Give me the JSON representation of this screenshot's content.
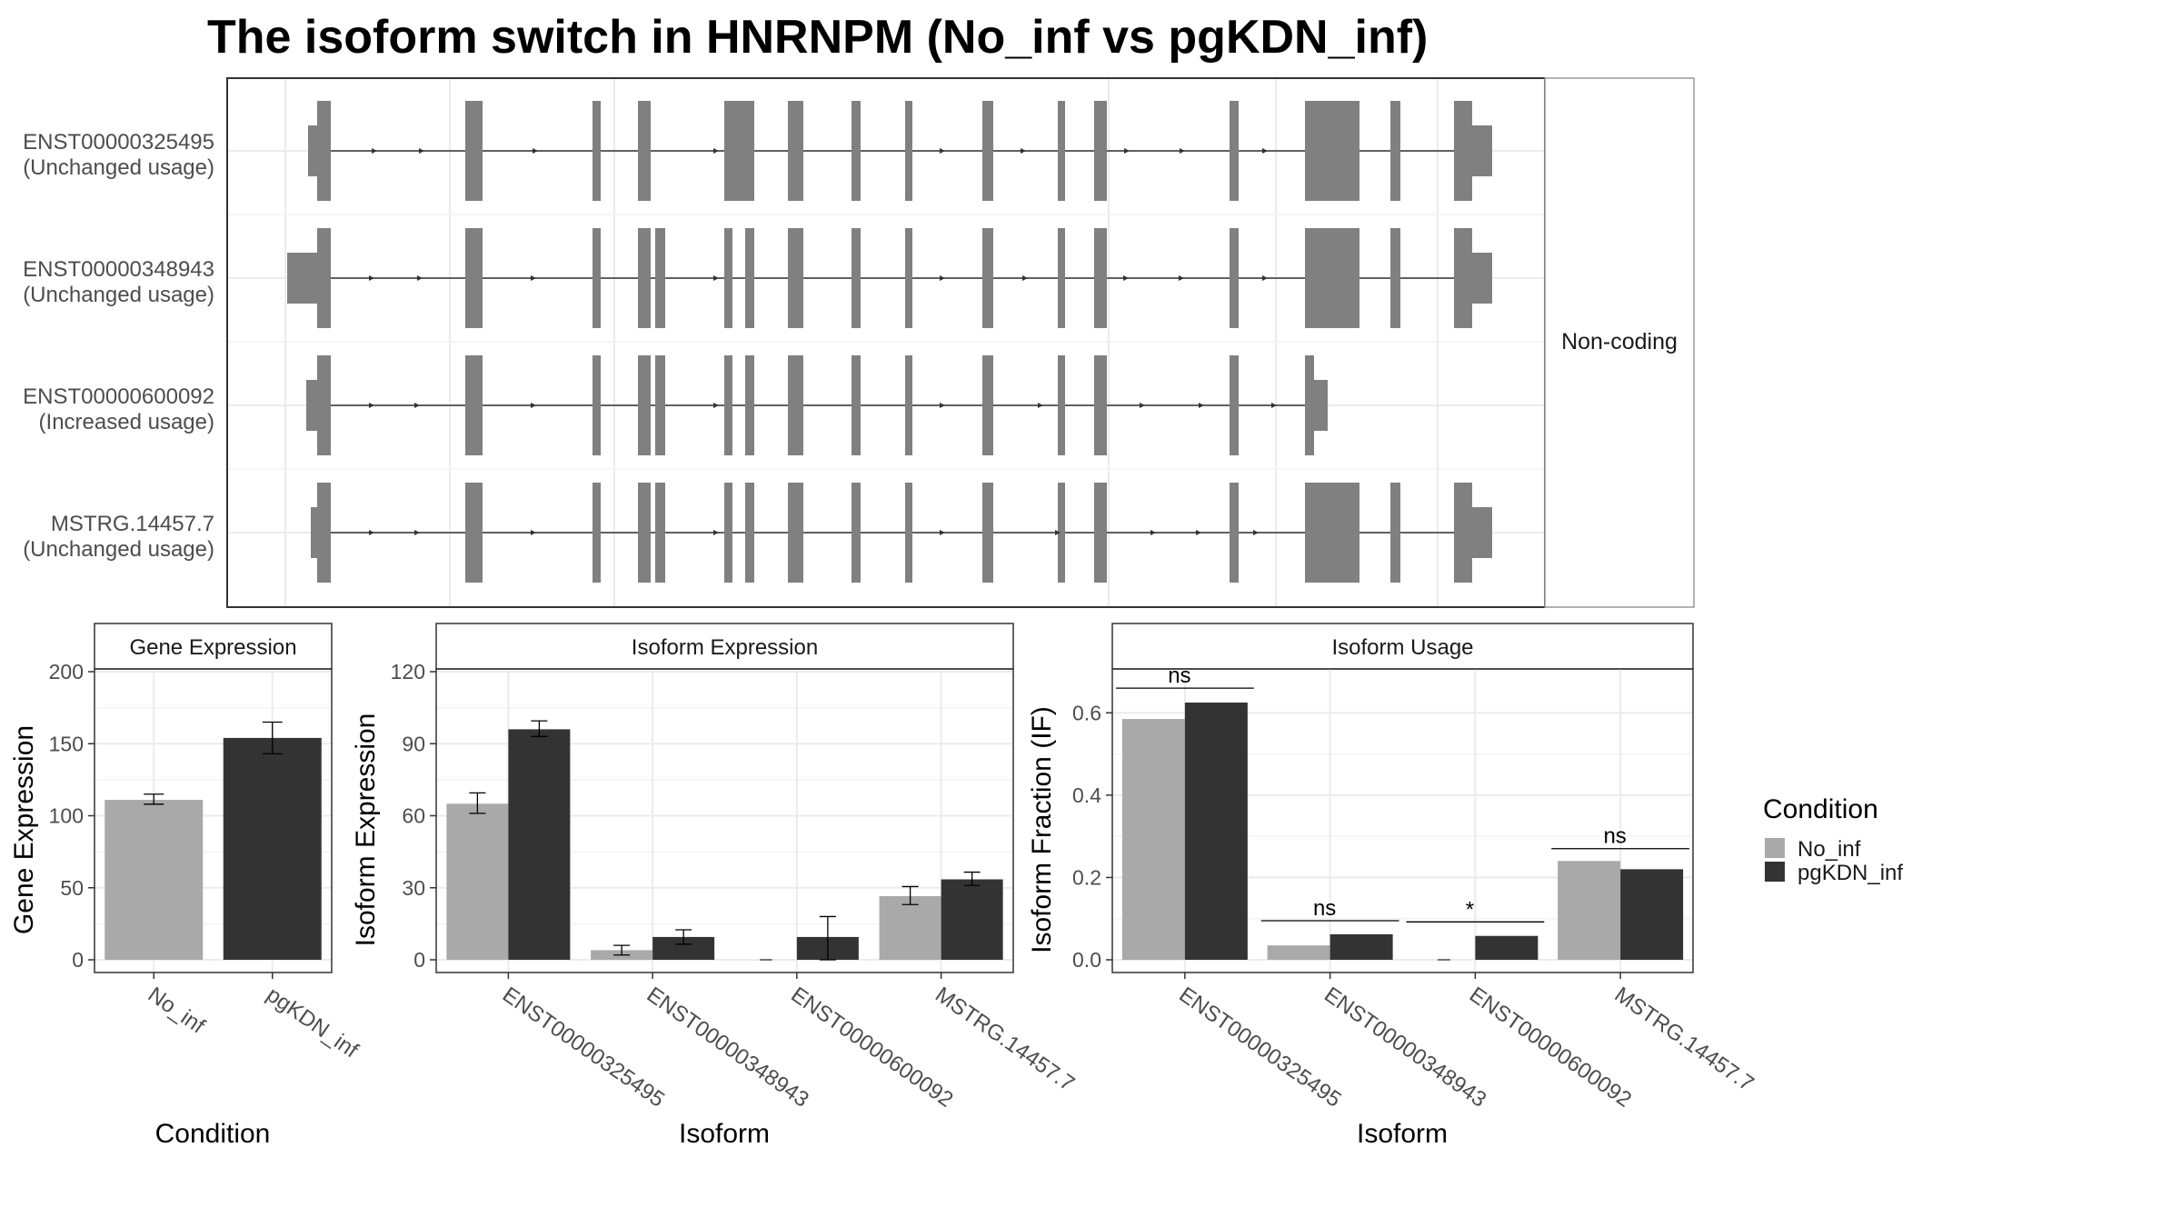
{
  "title": "The isoform switch in HNRNPM (No_inf vs pgKDN_inf)",
  "colors": {
    "no_inf": "#a9a9a9",
    "pgkdn_inf": "#333333",
    "exon": "#808080",
    "grid": "#ebebeb",
    "strip": "#ffffff"
  },
  "structure": {
    "facet_label": "Non-coding",
    "tracks": [
      {
        "id": "ENST00000325495",
        "status": "(Unchanged usage)"
      },
      {
        "id": "ENST00000348943",
        "status": "(Unchanged usage)"
      },
      {
        "id": "ENST00000600092",
        "status": "(Increased usage)"
      },
      {
        "id": "MSTRG.14457.7",
        "status": "(Unchanged usage)"
      }
    ]
  },
  "legend": {
    "title": "Condition",
    "items": [
      {
        "label": "No_inf",
        "color_key": "no_inf"
      },
      {
        "label": "pgKDN_inf",
        "color_key": "pgkdn_inf"
      }
    ]
  },
  "chart_data": [
    {
      "type": "bar",
      "title": "Gene Expression",
      "xlabel": "Condition",
      "ylabel": "Gene Expression",
      "ylim": [
        0,
        200
      ],
      "yticks": [
        0,
        50,
        100,
        150,
        200
      ],
      "categories": [
        "No_inf",
        "pgKDN_inf"
      ],
      "values": [
        111,
        154
      ],
      "error": [
        [
          108,
          115
        ],
        [
          143,
          165
        ]
      ]
    },
    {
      "type": "bar",
      "title": "Isoform Expression",
      "xlabel": "Isoform",
      "ylabel": "Isoform Expression",
      "ylim": [
        0,
        120
      ],
      "yticks": [
        0,
        30,
        60,
        90,
        120
      ],
      "categories": [
        "ENST00000325495",
        "ENST00000348943",
        "ENST00000600092",
        "MSTRG.14457.7"
      ],
      "series": [
        {
          "name": "No_inf",
          "values": [
            65,
            4,
            0,
            26.5
          ],
          "error": [
            [
              61,
              69.5
            ],
            [
              2,
              6
            ],
            [
              0,
              0
            ],
            [
              23,
              30.5
            ]
          ]
        },
        {
          "name": "pgKDN_inf",
          "values": [
            96,
            9.5,
            9.5,
            33.5
          ],
          "error": [
            [
              93,
              99.5
            ],
            [
              6.5,
              12.5
            ],
            [
              0,
              18
            ],
            [
              31,
              36.5
            ]
          ]
        }
      ]
    },
    {
      "type": "bar",
      "title": "Isoform Usage",
      "xlabel": "Isoform",
      "ylabel": "Isoform Fraction (IF)",
      "ylim": [
        0,
        0.7
      ],
      "yticks": [
        0.0,
        0.2,
        0.4,
        0.6
      ],
      "yticklabels": [
        "0.0",
        "0.2",
        "0.4",
        "0.6"
      ],
      "categories": [
        "ENST00000325495",
        "ENST00000348943",
        "ENST00000600092",
        "MSTRG.14457.7"
      ],
      "series": [
        {
          "name": "No_inf",
          "values": [
            0.585,
            0.035,
            0.0,
            0.24
          ]
        },
        {
          "name": "pgKDN_inf",
          "values": [
            0.625,
            0.062,
            0.058,
            0.22
          ]
        }
      ],
      "annotations": [
        {
          "category": "ENST00000325495",
          "label": "ns",
          "y": 0.66
        },
        {
          "category": "ENST00000348943",
          "label": "ns",
          "y": 0.095
        },
        {
          "category": "ENST00000600092",
          "label": "*",
          "y": 0.092
        },
        {
          "category": "MSTRG.14457.7",
          "label": "ns",
          "y": 0.27
        }
      ]
    }
  ]
}
